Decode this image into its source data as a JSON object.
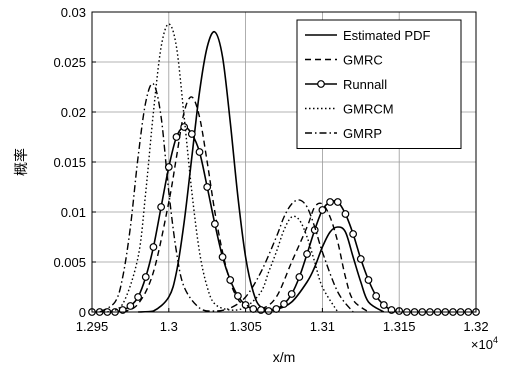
{
  "chart_data": {
    "type": "line",
    "xlabel": "x/m",
    "ylabel": "概率",
    "x_exponent_label": "×10^4",
    "x_scale_exponent": 4,
    "xlim": [
      12950,
      13200
    ],
    "ylim": [
      0,
      0.03
    ],
    "x_ticks": [
      12950,
      13000,
      13050,
      13100,
      13150,
      13200
    ],
    "x_tick_labels": [
      "1.295",
      "1.3",
      "1.305",
      "1.31",
      "1.315",
      "1.32"
    ],
    "y_ticks": [
      0,
      0.005,
      0.01,
      0.015,
      0.02,
      0.025,
      0.03
    ],
    "y_tick_labels": [
      "0",
      "0.005",
      "0.01",
      "0.015",
      "0.02",
      "0.025",
      "0.03"
    ],
    "grid": true,
    "legend_position": "top-right",
    "series": [
      {
        "name": "Estimated PDF",
        "style": "solid",
        "marker": "none",
        "color": "#000000",
        "x": [
          12980,
          12990,
          13000,
          13005,
          13010,
          13015,
          13020,
          13025,
          13030,
          13035,
          13040,
          13045,
          13050,
          13055,
          13060,
          13070,
          13080,
          13090,
          13095,
          13100,
          13105,
          13110,
          13115,
          13120,
          13125,
          13130,
          13140
        ],
        "y": [
          0,
          0.0001,
          0.0015,
          0.004,
          0.009,
          0.0155,
          0.022,
          0.0265,
          0.028,
          0.0255,
          0.019,
          0.0115,
          0.0055,
          0.002,
          0.0005,
          0.0003,
          0.001,
          0.003,
          0.0045,
          0.0065,
          0.008,
          0.0085,
          0.008,
          0.0055,
          0.003,
          0.001,
          0
        ]
      },
      {
        "name": "GMRC",
        "style": "dashed",
        "marker": "none",
        "color": "#000000",
        "x": [
          12970,
          12980,
          12990,
          13000,
          13005,
          13010,
          13015,
          13020,
          13025,
          13030,
          13035,
          13040,
          13045,
          13050,
          13060,
          13070,
          13080,
          13090,
          13095,
          13100,
          13105,
          13110,
          13115,
          13120,
          13130
        ],
        "y": [
          0,
          0.0008,
          0.004,
          0.011,
          0.0155,
          0.02,
          0.0215,
          0.0195,
          0.015,
          0.01,
          0.006,
          0.003,
          0.0013,
          0.0005,
          0.0003,
          0.0015,
          0.005,
          0.0085,
          0.0105,
          0.0108,
          0.0095,
          0.007,
          0.0035,
          0.0012,
          0
        ]
      },
      {
        "name": "Runnall",
        "style": "solid",
        "marker": "circle",
        "color": "#000000",
        "x": [
          12950,
          12955,
          12960,
          12965,
          12970,
          12975,
          12980,
          12985,
          12990,
          12995,
          13000,
          13005,
          13010,
          13015,
          13020,
          13025,
          13030,
          13035,
          13040,
          13045,
          13050,
          13055,
          13060,
          13065,
          13070,
          13075,
          13080,
          13085,
          13090,
          13095,
          13100,
          13105,
          13110,
          13115,
          13120,
          13125,
          13130,
          13135,
          13140,
          13145,
          13150,
          13155,
          13160,
          13165,
          13170,
          13175,
          13180,
          13185,
          13190,
          13195,
          13200
        ],
        "y": [
          0,
          0,
          0,
          0,
          0.0002,
          0.0006,
          0.0015,
          0.0035,
          0.0065,
          0.0105,
          0.0145,
          0.0175,
          0.0185,
          0.0178,
          0.016,
          0.0125,
          0.0088,
          0.0055,
          0.0032,
          0.0016,
          0.0007,
          0.0003,
          0.0002,
          0.0001,
          0.0003,
          0.0008,
          0.0018,
          0.0035,
          0.0058,
          0.0082,
          0.0102,
          0.011,
          0.011,
          0.0098,
          0.0078,
          0.0053,
          0.0032,
          0.0016,
          0.0007,
          0.0002,
          0.0001,
          0,
          0,
          0,
          0,
          0,
          0,
          0,
          0,
          0,
          0
        ]
      },
      {
        "name": "GMRCM",
        "style": "dotted",
        "marker": "none",
        "color": "#000000",
        "x": [
          12960,
          12970,
          12980,
          12985,
          12990,
          12995,
          13000,
          13005,
          13010,
          13015,
          13020,
          13025,
          13030,
          13040,
          13050,
          13060,
          13065,
          13070,
          13075,
          13080,
          13085,
          13090,
          13095,
          13100,
          13110
        ],
        "y": [
          0,
          0.0008,
          0.0055,
          0.012,
          0.02,
          0.0265,
          0.0288,
          0.0265,
          0.0195,
          0.012,
          0.006,
          0.0025,
          0.0008,
          0.0002,
          0.0005,
          0.002,
          0.004,
          0.006,
          0.0082,
          0.0095,
          0.0092,
          0.0075,
          0.005,
          0.0025,
          0
        ]
      },
      {
        "name": "GMRP",
        "style": "dashdot",
        "marker": "none",
        "color": "#000000",
        "x": [
          12955,
          12965,
          12970,
          12975,
          12980,
          12985,
          12990,
          12995,
          13000,
          13005,
          13010,
          13020,
          13030,
          13040,
          13050,
          13060,
          13070,
          13075,
          13080,
          13085,
          13090,
          13095,
          13100,
          13110,
          13120
        ],
        "y": [
          0,
          0.001,
          0.0035,
          0.0085,
          0.0155,
          0.021,
          0.0228,
          0.0195,
          0.012,
          0.006,
          0.0025,
          0.0004,
          0.0001,
          0.0004,
          0.0015,
          0.004,
          0.0075,
          0.0095,
          0.0108,
          0.0112,
          0.0105,
          0.0085,
          0.006,
          0.002,
          0
        ]
      }
    ]
  }
}
